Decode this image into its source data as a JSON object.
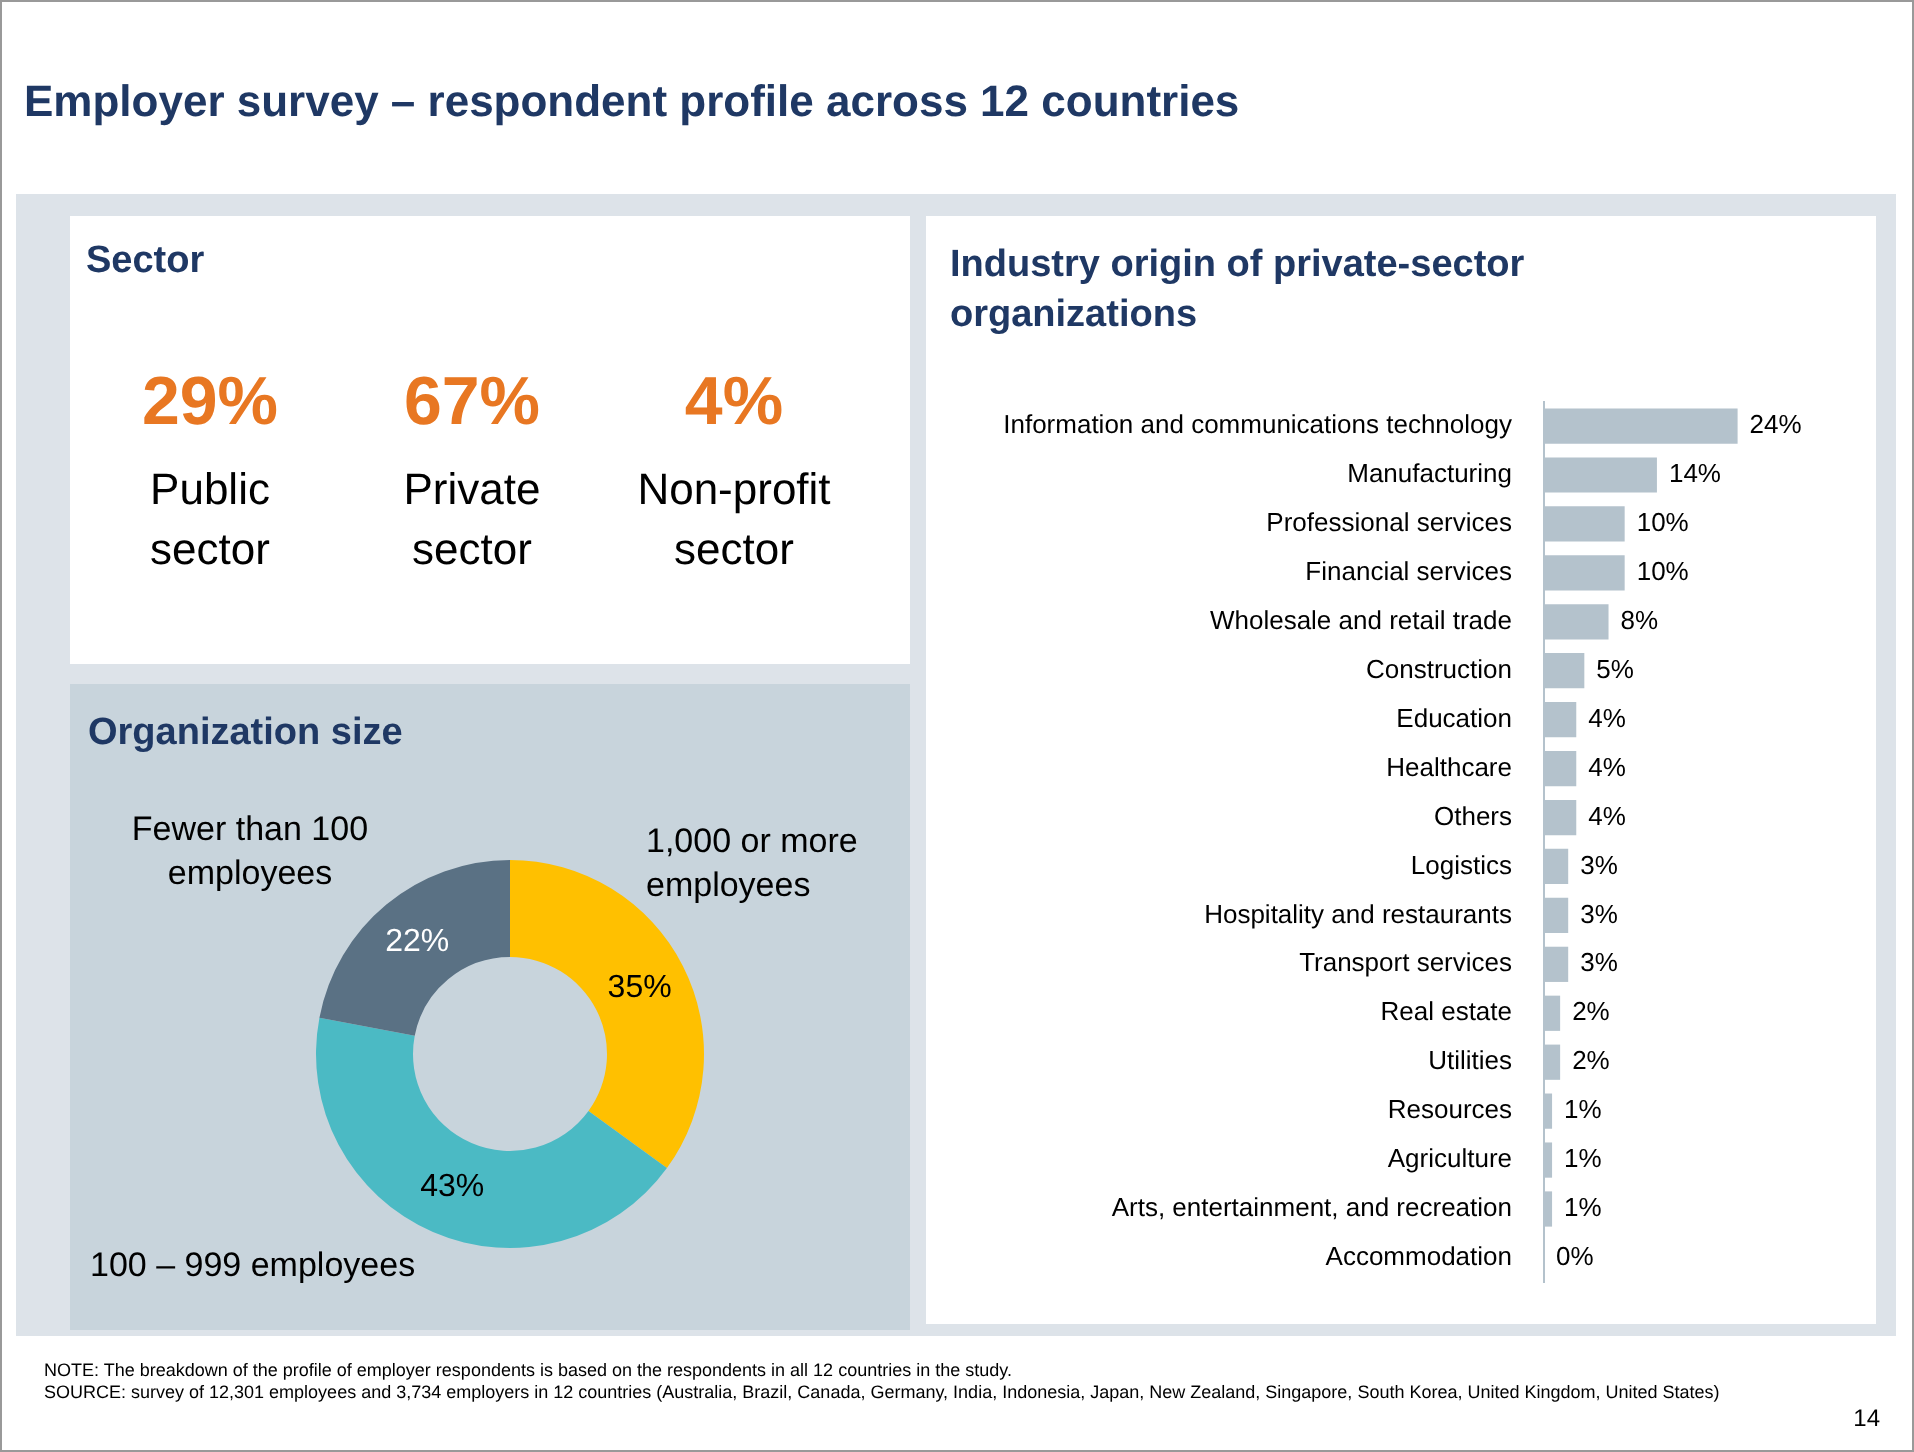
{
  "chart_data": [
    {
      "type": "other",
      "title": "Employer survey – respondent profile across 12 countries",
      "subtitle": "Sector",
      "categories": [
        "Public sector",
        "Private sector",
        "Non-profit sector"
      ],
      "values": [
        29,
        67,
        4
      ],
      "value_labels": [
        "29%",
        "67%",
        "4%"
      ]
    },
    {
      "type": "donut",
      "title": "Organization size",
      "categories": [
        "1,000 or more employees",
        "100 – 999 employees",
        "Fewer than 100 employees"
      ],
      "values": [
        35,
        43,
        22
      ],
      "value_labels": [
        "35%",
        "43%",
        "22%"
      ],
      "colors": [
        "#ffc000",
        "#4bbac4",
        "#5a7184"
      ],
      "legend": false
    },
    {
      "type": "bar",
      "orientation": "horizontal",
      "title": "Industry origin of private-sector organizations",
      "categories": [
        "Information and communications technology",
        "Manufacturing",
        "Professional services",
        "Financial services",
        "Wholesale and retail trade",
        "Construction",
        "Education",
        "Healthcare",
        "Others",
        "Logistics",
        "Hospitality and restaurants",
        "Transport services",
        "Real estate",
        "Utilities",
        "Resources",
        "Agriculture",
        "Arts, entertainment, and recreation",
        "Accommodation"
      ],
      "values": [
        24,
        14,
        10,
        10,
        8,
        5,
        4,
        4,
        4,
        3,
        3,
        3,
        2,
        2,
        1,
        1,
        1,
        0
      ],
      "value_labels": [
        "24%",
        "14%",
        "10%",
        "10%",
        "8%",
        "5%",
        "4%",
        "4%",
        "4%",
        "3%",
        "3%",
        "3%",
        "2%",
        "2%",
        "1%",
        "1%",
        "1%",
        "0%"
      ],
      "color": "#b4c2cc",
      "legend": false,
      "tick_labels": "y",
      "annotations": [
        "NOTE: The breakdown of the profile of employer respondents is based on the respondents in all 12 countries in the study.",
        "SOURCE: survey of 12,301 employees and 3,734 employers in 12 countries (Australia, Brazil, Canada, Germany, India, Indonesia, Japan, New Zealand, Singapore, South Korea, United Kingdom, United States)",
        "14"
      ]
    }
  ]
}
